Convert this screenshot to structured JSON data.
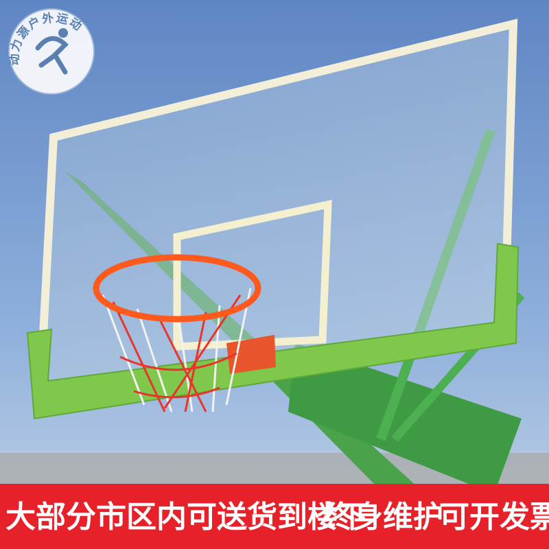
{
  "logo": {
    "text": "动力源户外运动"
  },
  "banner": {
    "items": [
      "大部分市区内可送货到楼下",
      "终身维护",
      "可开发票"
    ]
  }
}
